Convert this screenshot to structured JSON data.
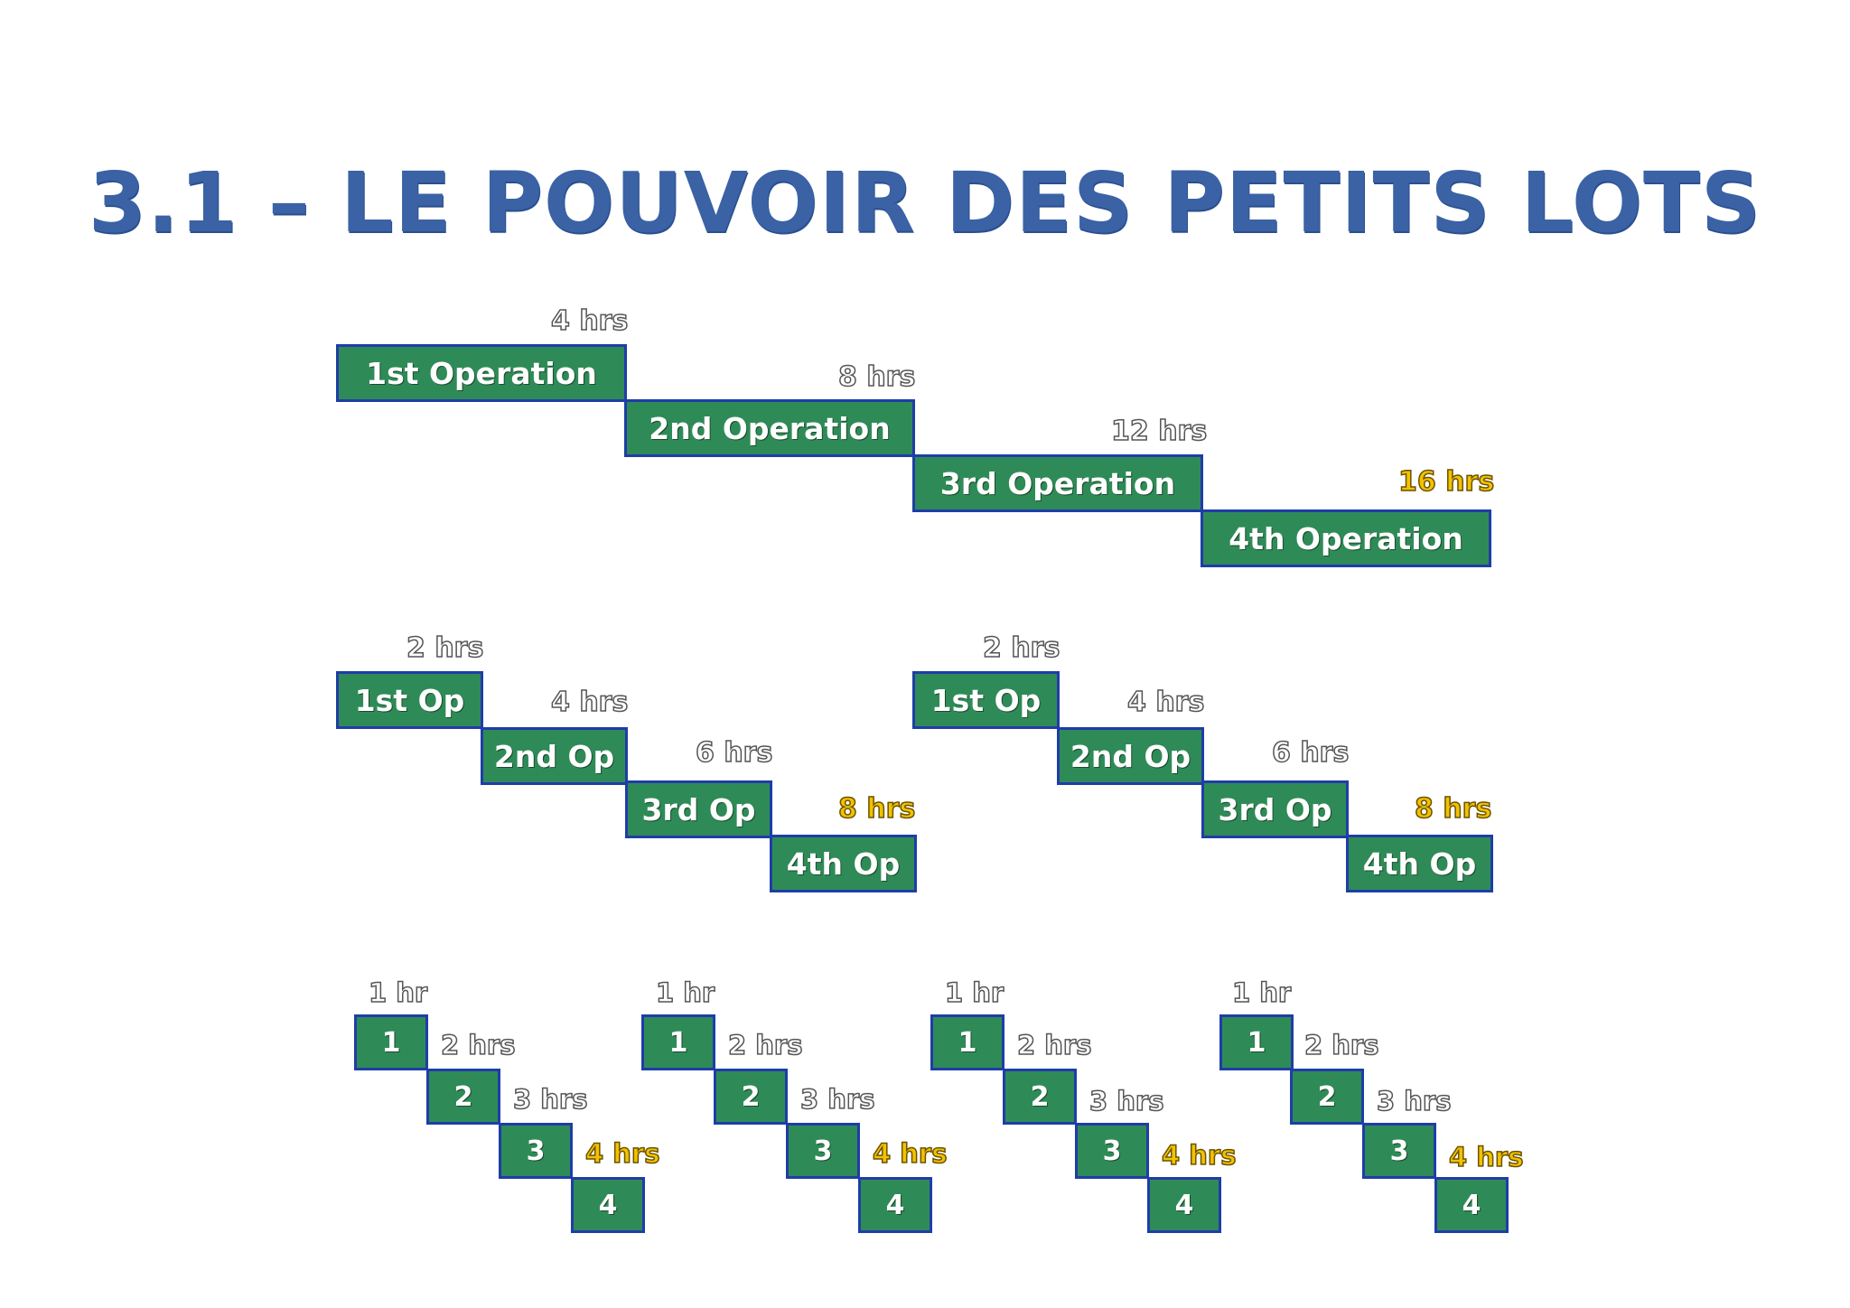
{
  "title": "3.1 – LE POUVOIR DES PETITS LOTS",
  "colors": {
    "title": "#3a62a5",
    "box_fill": "#2e8b57",
    "box_border": "#1f3da8",
    "highlight": "#f2c200"
  },
  "diagram1": {
    "boxes": [
      "1st Operation",
      "2nd Operation",
      "3rd Operation",
      "4th Operation"
    ],
    "labels": [
      "4 hrs",
      "8 hrs",
      "12 hrs",
      "16 hrs"
    ]
  },
  "diagram2": [
    {
      "boxes": [
        "1st Op",
        "2nd Op",
        "3rd Op",
        "4th Op"
      ],
      "labels": [
        "2 hrs",
        "4 hrs",
        "6 hrs",
        "8 hrs"
      ]
    },
    {
      "boxes": [
        "1st Op",
        "2nd Op",
        "3rd Op",
        "4th Op"
      ],
      "labels": [
        "2 hrs",
        "4 hrs",
        "6 hrs",
        "8 hrs"
      ]
    }
  ],
  "diagram3": [
    {
      "boxes": [
        "1",
        "2",
        "3",
        "4"
      ],
      "labels": [
        "1 hr",
        "2 hrs",
        "3 hrs",
        "4 hrs"
      ]
    },
    {
      "boxes": [
        "1",
        "2",
        "3",
        "4"
      ],
      "labels": [
        "1 hr",
        "2 hrs",
        "3 hrs",
        "4 hrs"
      ]
    },
    {
      "boxes": [
        "1",
        "2",
        "3",
        "4"
      ],
      "labels": [
        "1 hr",
        "2 hrs",
        "3 hrs",
        "4 hrs"
      ]
    },
    {
      "boxes": [
        "1",
        "2",
        "3",
        "4"
      ],
      "labels": [
        "1 hr",
        "2 hrs",
        "3 hrs",
        "4 hrs"
      ]
    }
  ]
}
